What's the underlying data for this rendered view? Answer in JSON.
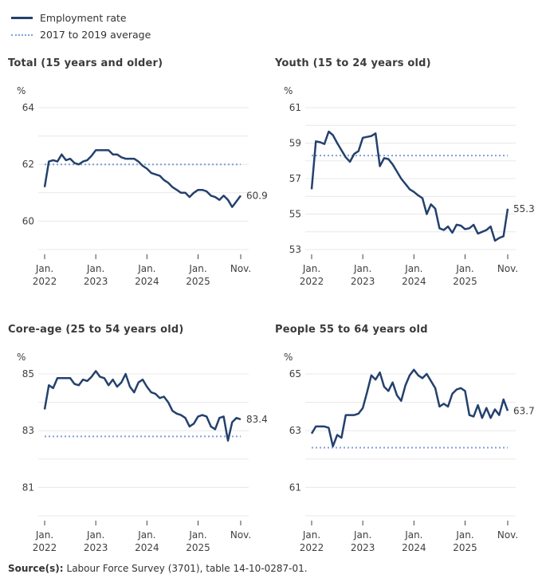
{
  "colors": {
    "line": "#24416d",
    "average": "#7f9fd6",
    "grid": "#e8e8e8",
    "tick_mark": "#444444",
    "tick_text": "#404040",
    "title_text": "#3b3b3b"
  },
  "legend": {
    "items": [
      {
        "label": "Employment rate",
        "style": "solid"
      },
      {
        "label": "2017 to 2019 average",
        "style": "dashed"
      }
    ]
  },
  "source": {
    "prefix": "Source(s):",
    "text": "Labour Force Survey (3701), table 14-10-0287-01."
  },
  "chart_data": [
    {
      "type": "line",
      "title": "Total (15 years and older)",
      "unit": "%",
      "x_range": "Jan 2022 to Nov 2025, monthly",
      "ylim": [
        59,
        64
      ],
      "grid_step": 1,
      "ytick_labels": [
        "64",
        "62",
        "60"
      ],
      "xticks": [
        {
          "month": 0,
          "line1": "Jan.",
          "line2": "2022"
        },
        {
          "month": 12,
          "line1": "Jan.",
          "line2": "2023"
        },
        {
          "month": 24,
          "line1": "Jan.",
          "line2": "2024"
        },
        {
          "month": 36,
          "line1": "Jan.",
          "line2": "2025"
        },
        {
          "month": 46,
          "line1": "Nov.",
          "line2": ""
        }
      ],
      "average": 62.0,
      "end_label": "60.9",
      "values": [
        61.2,
        62.1,
        62.15,
        62.1,
        62.35,
        62.15,
        62.2,
        62.05,
        62.0,
        62.1,
        62.15,
        62.3,
        62.5,
        62.5,
        62.5,
        62.5,
        62.35,
        62.35,
        62.25,
        62.2,
        62.2,
        62.2,
        62.1,
        61.95,
        61.85,
        61.7,
        61.65,
        61.6,
        61.45,
        61.35,
        61.2,
        61.1,
        61.0,
        61.0,
        60.85,
        61.0,
        61.1,
        61.1,
        61.05,
        60.9,
        60.85,
        60.75,
        60.9,
        60.75,
        60.5,
        60.7,
        60.9
      ]
    },
    {
      "type": "line",
      "title": "Youth (15 to 24 years old)",
      "unit": "%",
      "x_range": "Jan 2022 to Nov 2025, monthly",
      "ylim": [
        53,
        61
      ],
      "grid_step": 1,
      "ytick_labels": [
        "61",
        "59",
        "57",
        "55",
        "53"
      ],
      "xticks": [
        {
          "month": 0,
          "line1": "Jan.",
          "line2": "2022"
        },
        {
          "month": 12,
          "line1": "Jan.",
          "line2": "2023"
        },
        {
          "month": 24,
          "line1": "Jan.",
          "line2": "2024"
        },
        {
          "month": 36,
          "line1": "Jan.",
          "line2": "2025"
        },
        {
          "month": 46,
          "line1": "Nov.",
          "line2": ""
        }
      ],
      "average": 58.3,
      "end_label": "55.3",
      "values": [
        56.4,
        59.1,
        59.05,
        58.95,
        59.65,
        59.45,
        59.0,
        58.6,
        58.2,
        57.95,
        58.4,
        58.55,
        59.3,
        59.35,
        59.4,
        59.55,
        57.7,
        58.15,
        58.1,
        57.8,
        57.4,
        57.0,
        56.7,
        56.4,
        56.25,
        56.05,
        55.9,
        55.0,
        55.55,
        55.3,
        54.2,
        54.1,
        54.3,
        53.95,
        54.4,
        54.35,
        54.15,
        54.2,
        54.4,
        53.9,
        54.0,
        54.1,
        54.3,
        53.5,
        53.65,
        53.75,
        55.3
      ]
    },
    {
      "type": "line",
      "title": "Core-age (25 to 54 years old)",
      "unit": "%",
      "x_range": "Jan 2022 to Nov 2025, monthly",
      "ylim": [
        80,
        85
      ],
      "grid_step": 1,
      "ytick_labels": [
        "85",
        "83",
        "81"
      ],
      "xticks": [
        {
          "month": 0,
          "line1": "Jan.",
          "line2": "2022"
        },
        {
          "month": 12,
          "line1": "Jan.",
          "line2": "2023"
        },
        {
          "month": 24,
          "line1": "Jan.",
          "line2": "2024"
        },
        {
          "month": 36,
          "line1": "Jan.",
          "line2": "2025"
        },
        {
          "month": 46,
          "line1": "Nov.",
          "line2": ""
        }
      ],
      "average": 82.8,
      "end_label": "83.4",
      "values": [
        83.75,
        84.6,
        84.5,
        84.85,
        84.85,
        84.85,
        84.85,
        84.65,
        84.6,
        84.8,
        84.75,
        84.9,
        85.1,
        84.9,
        84.85,
        84.6,
        84.8,
        84.55,
        84.7,
        85.0,
        84.55,
        84.35,
        84.7,
        84.8,
        84.55,
        84.35,
        84.3,
        84.15,
        84.2,
        84.0,
        83.7,
        83.6,
        83.55,
        83.45,
        83.15,
        83.25,
        83.5,
        83.55,
        83.5,
        83.15,
        83.05,
        83.45,
        83.5,
        82.65,
        83.3,
        83.45,
        83.4
      ]
    },
    {
      "type": "line",
      "title": "People 55 to 64 years old",
      "unit": "%",
      "x_range": "Jan 2022 to Nov 2025, monthly",
      "ylim": [
        60,
        65
      ],
      "grid_step": 1,
      "ytick_labels": [
        "65",
        "63",
        "61"
      ],
      "xticks": [
        {
          "month": 0,
          "line1": "Jan.",
          "line2": "2022"
        },
        {
          "month": 12,
          "line1": "Jan.",
          "line2": "2023"
        },
        {
          "month": 24,
          "line1": "Jan.",
          "line2": "2024"
        },
        {
          "month": 36,
          "line1": "Jan.",
          "line2": "2025"
        },
        {
          "month": 46,
          "line1": "Nov.",
          "line2": ""
        }
      ],
      "average": 62.4,
      "end_label": "63.7",
      "values": [
        62.9,
        63.15,
        63.15,
        63.15,
        63.1,
        62.45,
        62.85,
        62.75,
        63.55,
        63.55,
        63.55,
        63.6,
        63.8,
        64.35,
        64.95,
        64.8,
        65.05,
        64.55,
        64.4,
        64.7,
        64.25,
        64.05,
        64.6,
        64.95,
        65.15,
        64.95,
        64.85,
        65.0,
        64.75,
        64.5,
        63.85,
        63.95,
        63.85,
        64.3,
        64.45,
        64.5,
        64.4,
        63.55,
        63.5,
        63.9,
        63.45,
        63.8,
        63.45,
        63.75,
        63.55,
        64.1,
        63.7
      ]
    }
  ]
}
